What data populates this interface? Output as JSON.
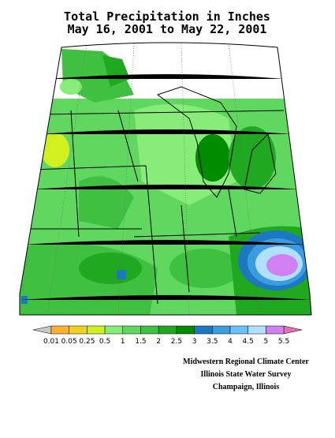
{
  "header": {
    "title": "Total Precipitation in Inches",
    "subtitle": "May 16, 2001 to May 22, 2001"
  },
  "legend": {
    "ticks": [
      0.01,
      0.05,
      0.25,
      0.5,
      1,
      1.5,
      2,
      2.5,
      3,
      3.5,
      4,
      4.5,
      5,
      5.5
    ],
    "colors": [
      "#c8c8c8",
      "#ffb030",
      "#f0d020",
      "#d0f020",
      "#88ec78",
      "#60d860",
      "#40c040",
      "#20a820",
      "#008c00",
      "#1c78c0",
      "#3c9ce0",
      "#6cc0f8",
      "#b0e0ff",
      "#d080f0",
      "#e070b0"
    ]
  },
  "credits": [
    "Midwestern Regional Climate Center",
    "Illinois State Water Survey",
    "Champaign, Illinois"
  ]
}
